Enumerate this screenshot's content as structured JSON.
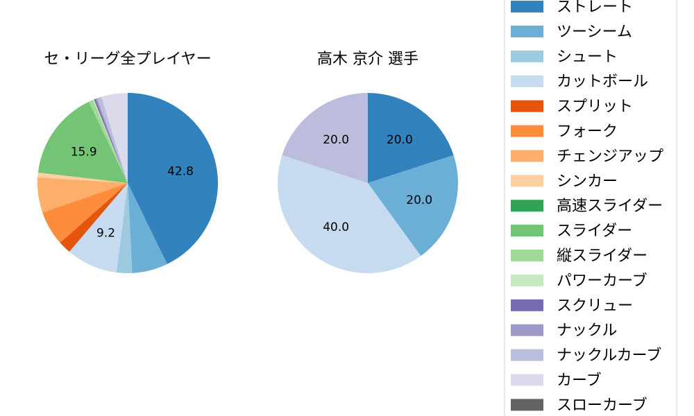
{
  "chart_data": [
    {
      "type": "pie",
      "title": "セ・リーグ全プレイヤー",
      "slices": [
        {
          "label": "ストレート",
          "value": 42.8,
          "color": "#3182bd",
          "show_value": true
        },
        {
          "label": "ツーシーム",
          "value": 6.4,
          "color": "#6baed6",
          "show_value": false
        },
        {
          "label": "シュート",
          "value": 2.8,
          "color": "#9ecae1",
          "show_value": false
        },
        {
          "label": "カットボール",
          "value": 9.2,
          "color": "#c6dbef",
          "show_value": true
        },
        {
          "label": "スプリット",
          "value": 2.3,
          "color": "#e6550d",
          "show_value": false
        },
        {
          "label": "フォーク",
          "value": 6.2,
          "color": "#fd8d3c",
          "show_value": false
        },
        {
          "label": "チェンジアップ",
          "value": 6.3,
          "color": "#fdae6b",
          "show_value": false
        },
        {
          "label": "シンカー",
          "value": 0.9,
          "color": "#fdd0a2",
          "show_value": false
        },
        {
          "label": "高速スライダー",
          "value": 0.1,
          "color": "#31a354",
          "show_value": false
        },
        {
          "label": "スライダー",
          "value": 15.9,
          "color": "#74c476",
          "show_value": true
        },
        {
          "label": "縦スライダー",
          "value": 0.8,
          "color": "#a1d99b",
          "show_value": false
        },
        {
          "label": "パワーカーブ",
          "value": 0.2,
          "color": "#c7e9c0",
          "show_value": false
        },
        {
          "label": "スクリュー",
          "value": 0.3,
          "color": "#756bb1",
          "show_value": false
        },
        {
          "label": "ナックル",
          "value": 0.3,
          "color": "#9e9ac8",
          "show_value": false
        },
        {
          "label": "ナックルカーブ",
          "value": 0.8,
          "color": "#bcbddc",
          "show_value": false
        },
        {
          "label": "カーブ",
          "value": 4.7,
          "color": "#dadaeb",
          "show_value": false
        },
        {
          "label": "スローカーブ",
          "value": 0.0,
          "color": "#636363",
          "show_value": false
        }
      ]
    },
    {
      "type": "pie",
      "title": "高木 京介  選手",
      "slices": [
        {
          "label": "ストレート",
          "value": 20.0,
          "color": "#3182bd",
          "show_value": true
        },
        {
          "label": "ツーシーム",
          "value": 20.0,
          "color": "#6baed6",
          "show_value": true
        },
        {
          "label": "カットボール",
          "value": 40.0,
          "color": "#c6dbef",
          "show_value": true
        },
        {
          "label": "ナックルカーブ",
          "value": 20.0,
          "color": "#bcbddc",
          "show_value": true
        }
      ]
    }
  ],
  "legend": {
    "placement": "right",
    "entries": [
      {
        "label": "ストレート",
        "color": "#3182bd"
      },
      {
        "label": "ツーシーム",
        "color": "#6baed6"
      },
      {
        "label": "シュート",
        "color": "#9ecae1"
      },
      {
        "label": "カットボール",
        "color": "#c6dbef"
      },
      {
        "label": "スプリット",
        "color": "#e6550d"
      },
      {
        "label": "フォーク",
        "color": "#fd8d3c"
      },
      {
        "label": "チェンジアップ",
        "color": "#fdae6b"
      },
      {
        "label": "シンカー",
        "color": "#fdd0a2"
      },
      {
        "label": "高速スライダー",
        "color": "#31a354"
      },
      {
        "label": "スライダー",
        "color": "#74c476"
      },
      {
        "label": "縦スライダー",
        "color": "#a1d99b"
      },
      {
        "label": "パワーカーブ",
        "color": "#c7e9c0"
      },
      {
        "label": "スクリュー",
        "color": "#756bb1"
      },
      {
        "label": "ナックル",
        "color": "#9e9ac8"
      },
      {
        "label": "ナックルカーブ",
        "color": "#bcbddc"
      },
      {
        "label": "カーブ",
        "color": "#dadaeb"
      },
      {
        "label": "スローカーブ",
        "color": "#636363"
      }
    ]
  }
}
